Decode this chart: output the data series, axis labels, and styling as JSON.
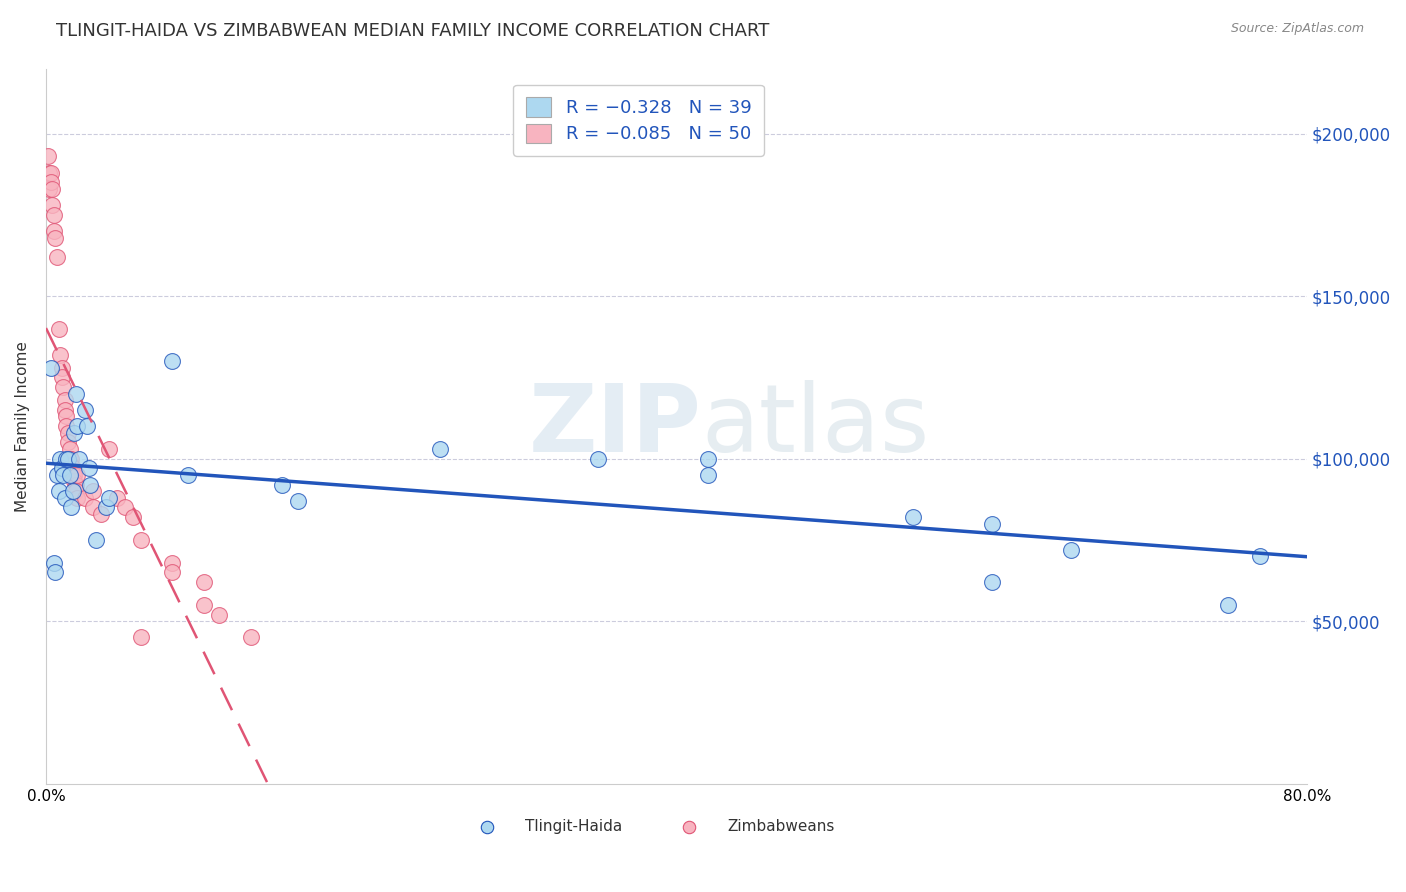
{
  "title": "TLINGIT-HAIDA VS ZIMBABWEAN MEDIAN FAMILY INCOME CORRELATION CHART",
  "source": "Source: ZipAtlas.com",
  "ylabel": "Median Family Income",
  "ytick_values": [
    50000,
    100000,
    150000,
    200000
  ],
  "ymin": 0,
  "ymax": 220000,
  "xmin": 0.0,
  "xmax": 0.8,
  "legend_r1": "R = −0.328   N = 39",
  "legend_r2": "R = −0.085   N = 50",
  "tlingit_color": "#add8f0",
  "zimbabwean_color": "#f8b4c0",
  "tlingit_line_color": "#2255bb",
  "zimbabwean_line_color": "#e05575",
  "tlingit_scatter": [
    [
      0.003,
      128000
    ],
    [
      0.005,
      68000
    ],
    [
      0.006,
      65000
    ],
    [
      0.007,
      95000
    ],
    [
      0.008,
      90000
    ],
    [
      0.009,
      100000
    ],
    [
      0.01,
      97000
    ],
    [
      0.011,
      95000
    ],
    [
      0.012,
      88000
    ],
    [
      0.013,
      100000
    ],
    [
      0.014,
      100000
    ],
    [
      0.015,
      95000
    ],
    [
      0.016,
      85000
    ],
    [
      0.017,
      90000
    ],
    [
      0.018,
      108000
    ],
    [
      0.019,
      120000
    ],
    [
      0.02,
      110000
    ],
    [
      0.021,
      100000
    ],
    [
      0.025,
      115000
    ],
    [
      0.026,
      110000
    ],
    [
      0.027,
      97000
    ],
    [
      0.028,
      92000
    ],
    [
      0.032,
      75000
    ],
    [
      0.038,
      85000
    ],
    [
      0.04,
      88000
    ],
    [
      0.08,
      130000
    ],
    [
      0.09,
      95000
    ],
    [
      0.15,
      92000
    ],
    [
      0.16,
      87000
    ],
    [
      0.25,
      103000
    ],
    [
      0.35,
      100000
    ],
    [
      0.42,
      100000
    ],
    [
      0.42,
      95000
    ],
    [
      0.55,
      82000
    ],
    [
      0.6,
      80000
    ],
    [
      0.6,
      62000
    ],
    [
      0.65,
      72000
    ],
    [
      0.75,
      55000
    ],
    [
      0.77,
      70000
    ]
  ],
  "zimbabwean_scatter": [
    [
      0.001,
      193000
    ],
    [
      0.002,
      188000
    ],
    [
      0.002,
      183000
    ],
    [
      0.003,
      188000
    ],
    [
      0.003,
      185000
    ],
    [
      0.004,
      183000
    ],
    [
      0.004,
      178000
    ],
    [
      0.005,
      175000
    ],
    [
      0.005,
      170000
    ],
    [
      0.006,
      168000
    ],
    [
      0.007,
      162000
    ],
    [
      0.008,
      140000
    ],
    [
      0.009,
      132000
    ],
    [
      0.01,
      128000
    ],
    [
      0.01,
      125000
    ],
    [
      0.011,
      122000
    ],
    [
      0.012,
      118000
    ],
    [
      0.012,
      115000
    ],
    [
      0.013,
      113000
    ],
    [
      0.013,
      110000
    ],
    [
      0.014,
      108000
    ],
    [
      0.014,
      105000
    ],
    [
      0.015,
      103000
    ],
    [
      0.015,
      100000
    ],
    [
      0.016,
      100000
    ],
    [
      0.016,
      98000
    ],
    [
      0.017,
      97000
    ],
    [
      0.017,
      95000
    ],
    [
      0.018,
      95000
    ],
    [
      0.018,
      93000
    ],
    [
      0.019,
      92000
    ],
    [
      0.019,
      90000
    ],
    [
      0.02,
      95000
    ],
    [
      0.02,
      88000
    ],
    [
      0.025,
      88000
    ],
    [
      0.03,
      90000
    ],
    [
      0.03,
      85000
    ],
    [
      0.035,
      83000
    ],
    [
      0.04,
      103000
    ],
    [
      0.045,
      88000
    ],
    [
      0.05,
      85000
    ],
    [
      0.055,
      82000
    ],
    [
      0.06,
      75000
    ],
    [
      0.06,
      45000
    ],
    [
      0.08,
      68000
    ],
    [
      0.08,
      65000
    ],
    [
      0.1,
      62000
    ],
    [
      0.1,
      55000
    ],
    [
      0.11,
      52000
    ],
    [
      0.13,
      45000
    ]
  ],
  "watermark_zip": "ZIP",
  "watermark_atlas": "atlas",
  "background_color": "#ffffff",
  "grid_color": "#ccccdd",
  "title_fontsize": 13,
  "axis_label_fontsize": 11,
  "tick_fontsize": 11
}
